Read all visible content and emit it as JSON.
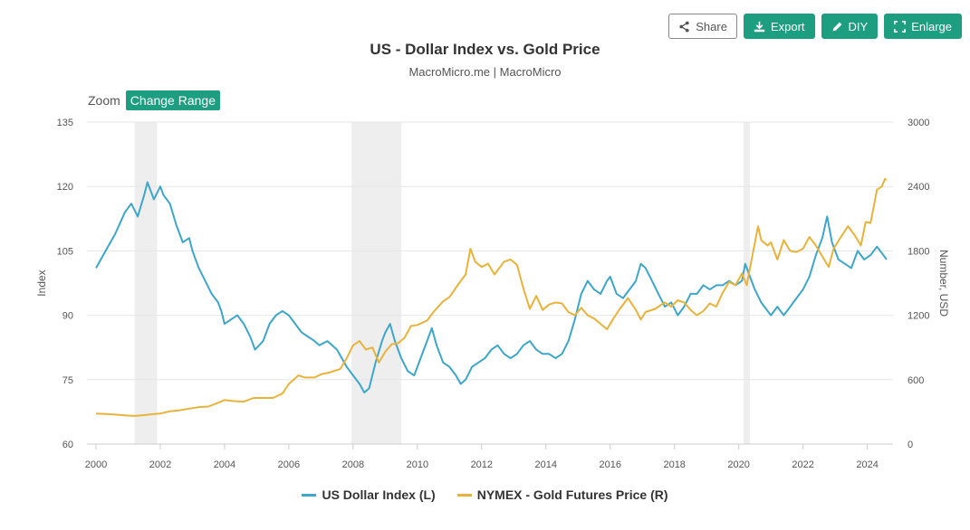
{
  "toolbar": {
    "share": "Share",
    "export": "Export",
    "diy": "DIY",
    "enlarge": "Enlarge"
  },
  "zoom": {
    "label": "Zoom",
    "button": "Change Range"
  },
  "colors": {
    "dxy": "#3ea6c8",
    "gold": "#e8b33c",
    "accent": "#1e9e81",
    "recession": "#eeeeee"
  },
  "chart_data": {
    "type": "line",
    "title": "US - Dollar Index vs. Gold Price",
    "subtitle": "MacroMicro.me | MacroMicro",
    "x_ticks": [
      "2000",
      "2002",
      "2004",
      "2006",
      "2008",
      "2010",
      "2012",
      "2014",
      "2016",
      "2018",
      "2020",
      "2022",
      "2024"
    ],
    "xlim": [
      2000,
      2024.8
    ],
    "y_left": {
      "label": "Index",
      "ylim": [
        60,
        135
      ],
      "ticks": [
        "60",
        "75",
        "90",
        "105",
        "120",
        "135"
      ]
    },
    "y_right": {
      "label": "Number, USD",
      "ylim": [
        0,
        3000
      ],
      "ticks": [
        "0",
        "600",
        "1200",
        "1800",
        "2400",
        "3000"
      ]
    },
    "recessions": [
      [
        2001.2,
        2001.9
      ],
      [
        2007.95,
        2009.5
      ],
      [
        2020.15,
        2020.35
      ]
    ],
    "legend_position": "bottom",
    "series": [
      {
        "name": "US Dollar Index (L)",
        "axis": "left",
        "color": "#3ea6c8",
        "points": [
          [
            2000.0,
            101
          ],
          [
            2000.3,
            105
          ],
          [
            2000.6,
            109
          ],
          [
            2000.9,
            114
          ],
          [
            2001.1,
            116
          ],
          [
            2001.3,
            113
          ],
          [
            2001.5,
            118
          ],
          [
            2001.6,
            121
          ],
          [
            2001.8,
            117
          ],
          [
            2002.0,
            120
          ],
          [
            2002.1,
            118
          ],
          [
            2002.3,
            116
          ],
          [
            2002.5,
            111
          ],
          [
            2002.7,
            107
          ],
          [
            2002.9,
            108
          ],
          [
            2003.0,
            105
          ],
          [
            2003.2,
            101
          ],
          [
            2003.4,
            98
          ],
          [
            2003.6,
            95
          ],
          [
            2003.8,
            93
          ],
          [
            2003.9,
            91
          ],
          [
            2004.0,
            88
          ],
          [
            2004.2,
            89
          ],
          [
            2004.4,
            90
          ],
          [
            2004.6,
            88
          ],
          [
            2004.8,
            85
          ],
          [
            2004.95,
            82
          ],
          [
            2005.2,
            84
          ],
          [
            2005.4,
            88
          ],
          [
            2005.6,
            90
          ],
          [
            2005.8,
            91
          ],
          [
            2006.0,
            90
          ],
          [
            2006.2,
            88
          ],
          [
            2006.4,
            86
          ],
          [
            2006.6,
            85
          ],
          [
            2006.8,
            84
          ],
          [
            2006.95,
            83
          ],
          [
            2007.2,
            84
          ],
          [
            2007.5,
            82
          ],
          [
            2007.8,
            78
          ],
          [
            2008.0,
            76
          ],
          [
            2008.2,
            74
          ],
          [
            2008.35,
            72
          ],
          [
            2008.5,
            73
          ],
          [
            2008.7,
            79
          ],
          [
            2008.9,
            84
          ],
          [
            2009.0,
            86
          ],
          [
            2009.15,
            88
          ],
          [
            2009.3,
            84
          ],
          [
            2009.5,
            80
          ],
          [
            2009.7,
            77
          ],
          [
            2009.9,
            76
          ],
          [
            2010.1,
            80
          ],
          [
            2010.3,
            84
          ],
          [
            2010.45,
            87
          ],
          [
            2010.6,
            83
          ],
          [
            2010.8,
            79
          ],
          [
            2011.0,
            78
          ],
          [
            2011.2,
            76
          ],
          [
            2011.35,
            74
          ],
          [
            2011.5,
            75
          ],
          [
            2011.7,
            78
          ],
          [
            2011.9,
            79
          ],
          [
            2012.1,
            80
          ],
          [
            2012.3,
            82
          ],
          [
            2012.5,
            83
          ],
          [
            2012.7,
            81
          ],
          [
            2012.9,
            80
          ],
          [
            2013.1,
            81
          ],
          [
            2013.3,
            83
          ],
          [
            2013.5,
            84
          ],
          [
            2013.7,
            82
          ],
          [
            2013.9,
            81
          ],
          [
            2014.1,
            81
          ],
          [
            2014.3,
            80
          ],
          [
            2014.5,
            81
          ],
          [
            2014.7,
            84
          ],
          [
            2014.9,
            89
          ],
          [
            2015.1,
            95
          ],
          [
            2015.3,
            98
          ],
          [
            2015.5,
            96
          ],
          [
            2015.7,
            95
          ],
          [
            2015.9,
            98
          ],
          [
            2016.0,
            99
          ],
          [
            2016.2,
            95
          ],
          [
            2016.4,
            94
          ],
          [
            2016.6,
            96
          ],
          [
            2016.8,
            98
          ],
          [
            2016.95,
            102
          ],
          [
            2017.1,
            101
          ],
          [
            2017.3,
            98
          ],
          [
            2017.5,
            95
          ],
          [
            2017.7,
            92
          ],
          [
            2017.9,
            93
          ],
          [
            2018.1,
            90
          ],
          [
            2018.3,
            92
          ],
          [
            2018.5,
            95
          ],
          [
            2018.7,
            95
          ],
          [
            2018.9,
            97
          ],
          [
            2019.1,
            96
          ],
          [
            2019.3,
            97
          ],
          [
            2019.5,
            97
          ],
          [
            2019.7,
            98
          ],
          [
            2019.9,
            97
          ],
          [
            2020.1,
            98
          ],
          [
            2020.2,
            102
          ],
          [
            2020.3,
            100
          ],
          [
            2020.5,
            96
          ],
          [
            2020.7,
            93
          ],
          [
            2020.9,
            91
          ],
          [
            2021.0,
            90
          ],
          [
            2021.2,
            92
          ],
          [
            2021.4,
            90
          ],
          [
            2021.6,
            92
          ],
          [
            2021.8,
            94
          ],
          [
            2022.0,
            96
          ],
          [
            2022.2,
            99
          ],
          [
            2022.4,
            104
          ],
          [
            2022.6,
            108
          ],
          [
            2022.75,
            113
          ],
          [
            2022.9,
            107
          ],
          [
            2023.1,
            103
          ],
          [
            2023.3,
            102
          ],
          [
            2023.5,
            101
          ],
          [
            2023.7,
            105
          ],
          [
            2023.9,
            103
          ],
          [
            2024.1,
            104
          ],
          [
            2024.3,
            106
          ],
          [
            2024.5,
            104
          ],
          [
            2024.6,
            103
          ]
        ]
      },
      {
        "name": "NYMEX - Gold Futures Price (R)",
        "axis": "right",
        "color": "#e8b33c",
        "points": [
          [
            2000.0,
            285
          ],
          [
            2000.3,
            280
          ],
          [
            2000.6,
            275
          ],
          [
            2000.9,
            268
          ],
          [
            2001.2,
            262
          ],
          [
            2001.5,
            270
          ],
          [
            2001.8,
            280
          ],
          [
            2002.0,
            285
          ],
          [
            2002.3,
            305
          ],
          [
            2002.6,
            315
          ],
          [
            2002.9,
            330
          ],
          [
            2003.2,
            345
          ],
          [
            2003.5,
            350
          ],
          [
            2003.8,
            385
          ],
          [
            2004.0,
            410
          ],
          [
            2004.3,
            400
          ],
          [
            2004.6,
            395
          ],
          [
            2004.9,
            430
          ],
          [
            2005.2,
            430
          ],
          [
            2005.5,
            430
          ],
          [
            2005.8,
            470
          ],
          [
            2006.0,
            560
          ],
          [
            2006.3,
            640
          ],
          [
            2006.5,
            620
          ],
          [
            2006.8,
            620
          ],
          [
            2007.0,
            650
          ],
          [
            2007.3,
            670
          ],
          [
            2007.6,
            700
          ],
          [
            2007.8,
            800
          ],
          [
            2008.0,
            920
          ],
          [
            2008.2,
            960
          ],
          [
            2008.4,
            880
          ],
          [
            2008.6,
            900
          ],
          [
            2008.8,
            760
          ],
          [
            2009.0,
            860
          ],
          [
            2009.2,
            930
          ],
          [
            2009.4,
            940
          ],
          [
            2009.6,
            990
          ],
          [
            2009.8,
            1100
          ],
          [
            2010.0,
            1110
          ],
          [
            2010.3,
            1150
          ],
          [
            2010.5,
            1230
          ],
          [
            2010.8,
            1330
          ],
          [
            2011.0,
            1370
          ],
          [
            2011.3,
            1500
          ],
          [
            2011.5,
            1580
          ],
          [
            2011.65,
            1820
          ],
          [
            2011.8,
            1700
          ],
          [
            2012.0,
            1650
          ],
          [
            2012.2,
            1680
          ],
          [
            2012.4,
            1580
          ],
          [
            2012.7,
            1700
          ],
          [
            2012.9,
            1720
          ],
          [
            2013.1,
            1670
          ],
          [
            2013.3,
            1450
          ],
          [
            2013.5,
            1260
          ],
          [
            2013.7,
            1380
          ],
          [
            2013.9,
            1250
          ],
          [
            2014.1,
            1300
          ],
          [
            2014.3,
            1320
          ],
          [
            2014.5,
            1310
          ],
          [
            2014.7,
            1230
          ],
          [
            2014.9,
            1200
          ],
          [
            2015.1,
            1270
          ],
          [
            2015.3,
            1200
          ],
          [
            2015.5,
            1170
          ],
          [
            2015.7,
            1120
          ],
          [
            2015.9,
            1070
          ],
          [
            2016.1,
            1170
          ],
          [
            2016.3,
            1260
          ],
          [
            2016.55,
            1360
          ],
          [
            2016.8,
            1250
          ],
          [
            2016.95,
            1160
          ],
          [
            2017.1,
            1230
          ],
          [
            2017.4,
            1260
          ],
          [
            2017.7,
            1320
          ],
          [
            2017.9,
            1280
          ],
          [
            2018.1,
            1340
          ],
          [
            2018.3,
            1320
          ],
          [
            2018.5,
            1250
          ],
          [
            2018.7,
            1200
          ],
          [
            2018.9,
            1240
          ],
          [
            2019.1,
            1310
          ],
          [
            2019.3,
            1280
          ],
          [
            2019.5,
            1410
          ],
          [
            2019.7,
            1510
          ],
          [
            2019.9,
            1480
          ],
          [
            2020.1,
            1590
          ],
          [
            2020.25,
            1480
          ],
          [
            2020.4,
            1720
          ],
          [
            2020.6,
            2030
          ],
          [
            2020.7,
            1900
          ],
          [
            2020.9,
            1850
          ],
          [
            2021.0,
            1880
          ],
          [
            2021.2,
            1720
          ],
          [
            2021.4,
            1900
          ],
          [
            2021.6,
            1800
          ],
          [
            2021.8,
            1790
          ],
          [
            2022.0,
            1820
          ],
          [
            2022.2,
            1930
          ],
          [
            2022.4,
            1850
          ],
          [
            2022.6,
            1750
          ],
          [
            2022.8,
            1650
          ],
          [
            2022.95,
            1820
          ],
          [
            2023.2,
            1940
          ],
          [
            2023.4,
            2030
          ],
          [
            2023.6,
            1950
          ],
          [
            2023.8,
            1850
          ],
          [
            2023.95,
            2070
          ],
          [
            2024.1,
            2060
          ],
          [
            2024.3,
            2370
          ],
          [
            2024.45,
            2400
          ],
          [
            2024.55,
            2470
          ],
          [
            2024.6,
            2460
          ]
        ]
      }
    ]
  }
}
